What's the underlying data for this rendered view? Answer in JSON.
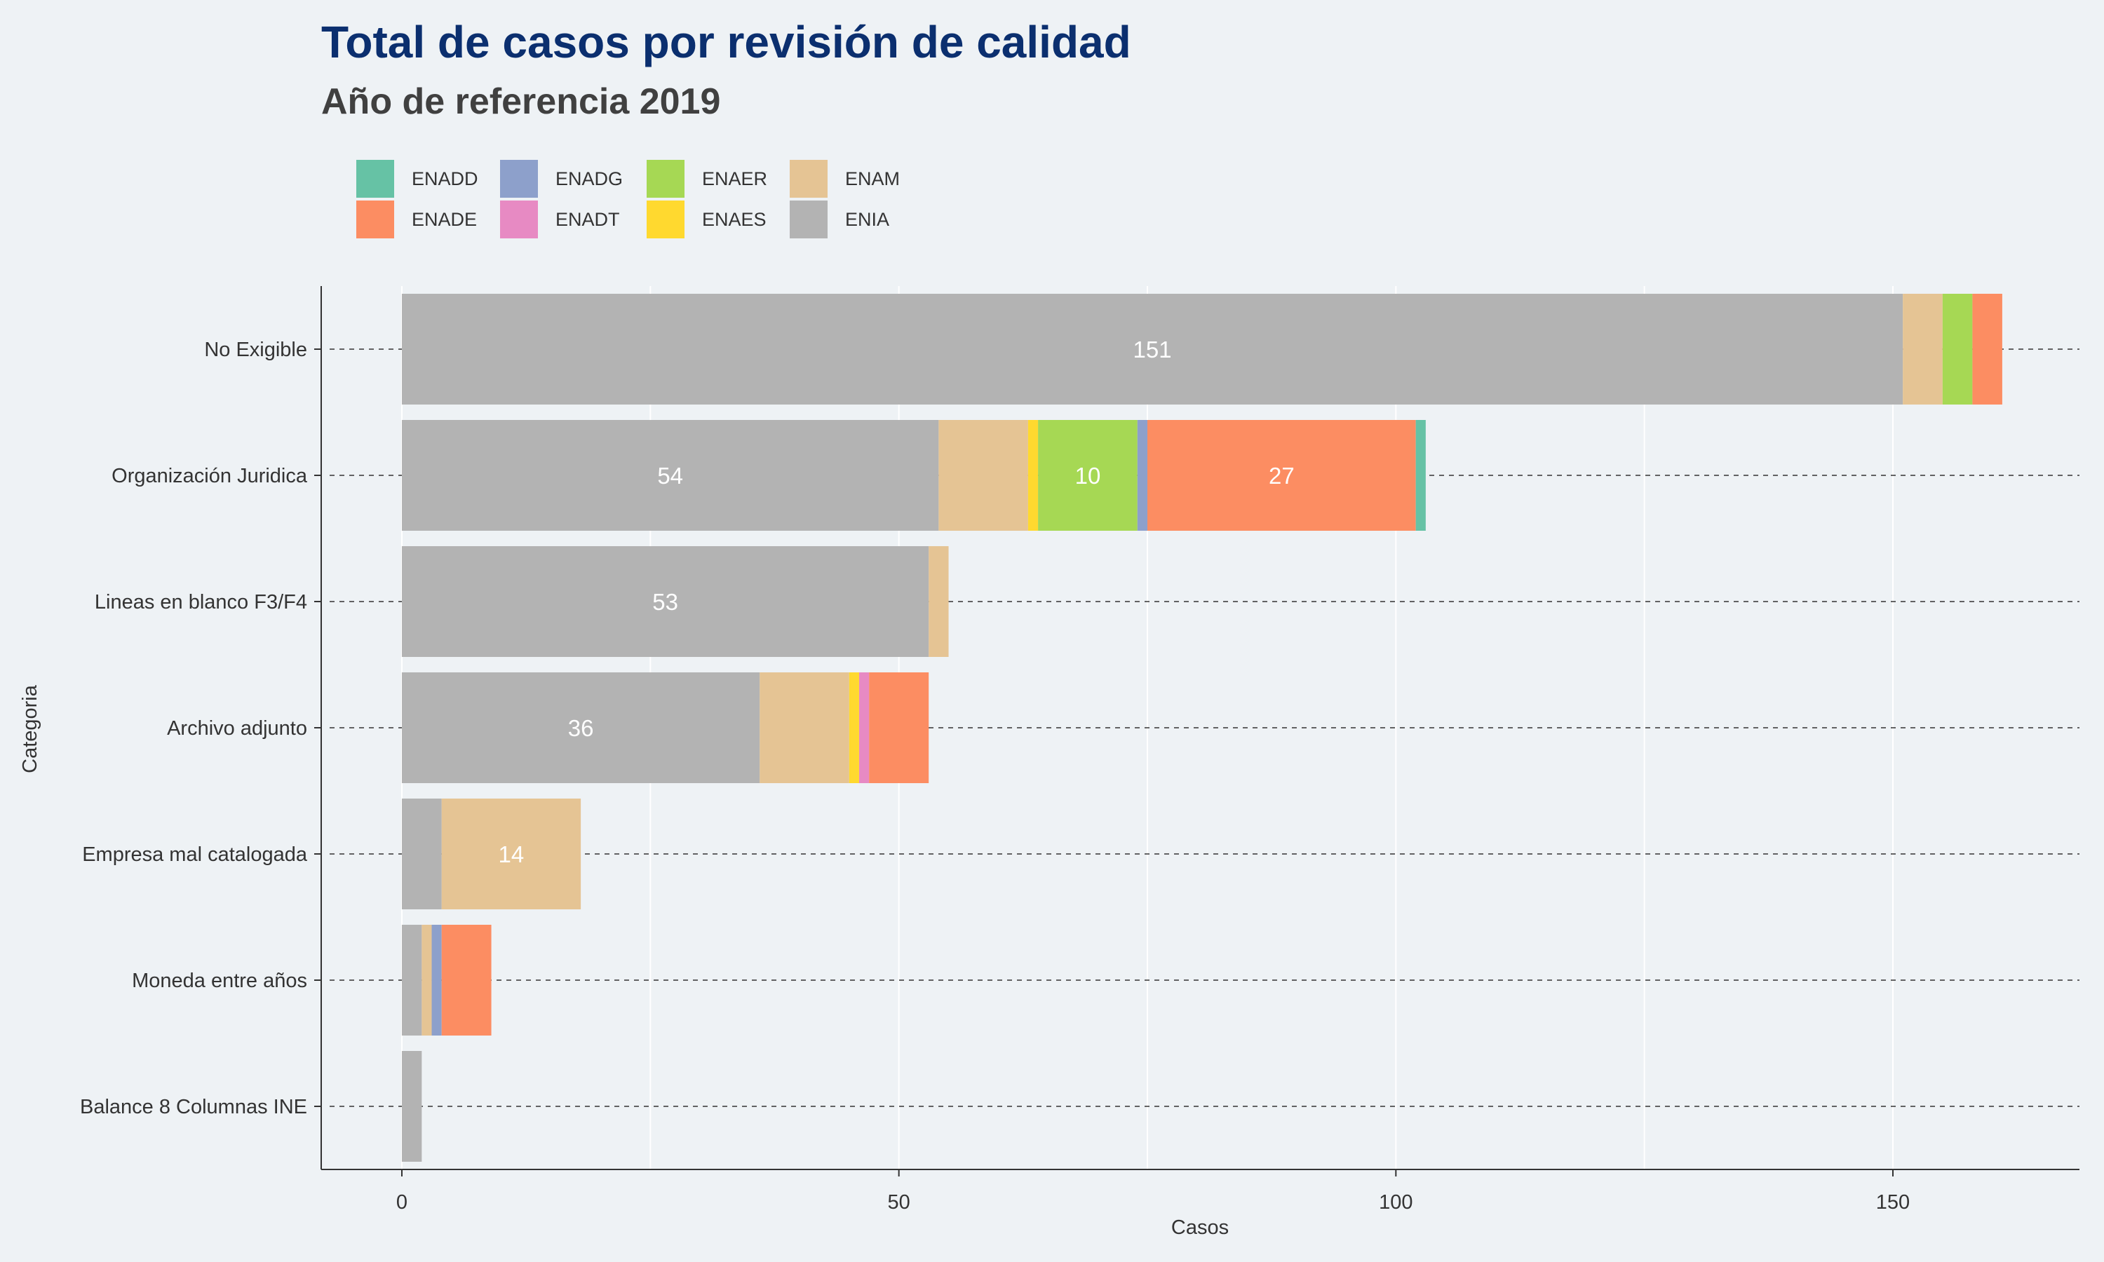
{
  "chart_data": {
    "type": "bar",
    "orientation": "horizontal",
    "stacked": true,
    "title": "Total de casos por revisión de calidad",
    "subtitle": "Año de referencia 2019",
    "xlabel": "Casos",
    "ylabel": "Categoria",
    "xlim": [
      -8,
      170
    ],
    "xticks": [
      0,
      50,
      100,
      150
    ],
    "grid": true,
    "legend_position": "top",
    "categories": [
      "No Exigible",
      "Organización Juridica",
      "Lineas en blanco F3/F4",
      "Archivo adjunto",
      "Empresa mal catalogada",
      "Moneda entre años",
      "Balance 8 Columnas INE"
    ],
    "stack_order": [
      "ENIA",
      "ENAM",
      "ENAES",
      "ENAER",
      "ENADG",
      "ENADT",
      "ENADE",
      "ENADD"
    ],
    "legend_order": [
      "ENADD",
      "ENADE",
      "ENADG",
      "ENADT",
      "ENAER",
      "ENAES",
      "ENAM",
      "ENIA"
    ],
    "colors": {
      "ENADD": "#66c2a5",
      "ENADE": "#fc8d62",
      "ENADG": "#8da0cb",
      "ENADT": "#e78ac3",
      "ENAER": "#a6d854",
      "ENAES": "#ffd92f",
      "ENAM": "#e5c494",
      "ENIA": "#b3b3b3"
    },
    "series": [
      {
        "name": "ENIA",
        "values": [
          151,
          54,
          53,
          36,
          4,
          2,
          2
        ]
      },
      {
        "name": "ENAM",
        "values": [
          4,
          9,
          2,
          9,
          14,
          1,
          0
        ]
      },
      {
        "name": "ENAES",
        "values": [
          0,
          1,
          0,
          1,
          0,
          0,
          0
        ]
      },
      {
        "name": "ENAER",
        "values": [
          3,
          10,
          0,
          0,
          0,
          0,
          0
        ]
      },
      {
        "name": "ENADG",
        "values": [
          0,
          1,
          0,
          0,
          0,
          1,
          0
        ]
      },
      {
        "name": "ENADT",
        "values": [
          0,
          0,
          0,
          1,
          0,
          0,
          0
        ]
      },
      {
        "name": "ENADE",
        "values": [
          3,
          27,
          0,
          6,
          0,
          5,
          0
        ]
      },
      {
        "name": "ENADD",
        "values": [
          0,
          1,
          0,
          0,
          0,
          0,
          0
        ]
      }
    ],
    "label_threshold": 10
  }
}
